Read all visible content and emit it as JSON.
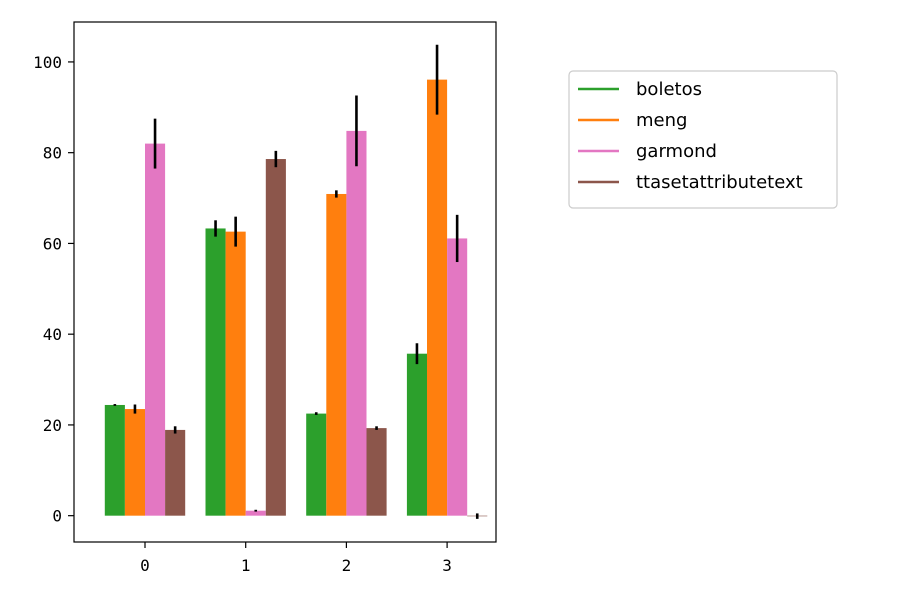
{
  "chart_data": {
    "type": "bar",
    "categories": [
      "0",
      "1",
      "2",
      "3"
    ],
    "series": [
      {
        "name": "boletos",
        "color": "#2ca02c",
        "values": [
          24.4,
          63.3,
          22.5,
          35.7
        ],
        "errors": [
          0.2,
          1.8,
          0.3,
          2.3
        ]
      },
      {
        "name": "meng",
        "color": "#ff7f0e",
        "values": [
          23.5,
          62.6,
          70.9,
          96.1
        ],
        "errors": [
          1.0,
          3.3,
          0.8,
          7.7
        ]
      },
      {
        "name": "garmond",
        "color": "#e377c2",
        "values": [
          82.0,
          1.1,
          84.8,
          61.1
        ],
        "errors": [
          5.5,
          0.2,
          7.8,
          5.2
        ]
      },
      {
        "name": "ttasetattributetext",
        "color": "#8c564b",
        "values": [
          18.9,
          78.6,
          19.3,
          -0.1
        ],
        "errors": [
          0.8,
          1.8,
          0.4,
          0.6
        ]
      }
    ],
    "yticks": [
      "0",
      "20",
      "40",
      "60",
      "80",
      "100"
    ],
    "ylim": [
      -5.8,
      108.8
    ],
    "grid": false,
    "legend_position": "outside-right",
    "error_bar_color": "#000000"
  }
}
